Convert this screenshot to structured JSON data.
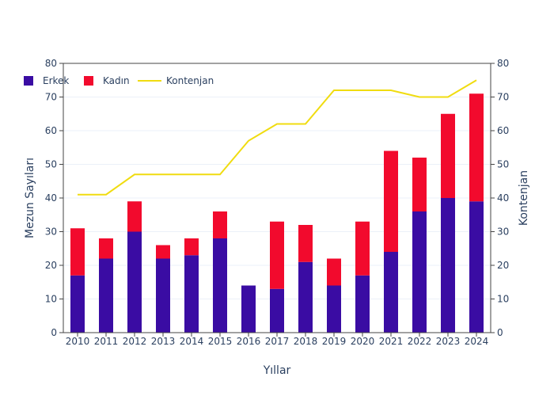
{
  "chart_data": {
    "type": "bar",
    "title": "",
    "xlabel": "Yıllar",
    "ylabel": "Mezun Sayıları",
    "y2label": "Kontenjan",
    "categories": [
      "2010",
      "2011",
      "2012",
      "2013",
      "2014",
      "2015",
      "2016",
      "2017",
      "2018",
      "2019",
      "2020",
      "2021",
      "2022",
      "2023",
      "2024"
    ],
    "ylim": [
      0,
      80
    ],
    "y2lim": [
      0,
      80
    ],
    "yticks": [
      0,
      10,
      20,
      30,
      40,
      50,
      60,
      70,
      80
    ],
    "grid": true,
    "legend_position": "top-left",
    "stacked": true,
    "series": [
      {
        "name": "Erkek",
        "type": "bar",
        "color": "#3a0ca3",
        "values": [
          17,
          22,
          30,
          22,
          23,
          28,
          14,
          13,
          21,
          14,
          17,
          24,
          36,
          40,
          39
        ]
      },
      {
        "name": "Kadın",
        "type": "bar",
        "color": "#f20a2d",
        "values": [
          14,
          6,
          9,
          4,
          5,
          8,
          0,
          20,
          11,
          8,
          16,
          30,
          16,
          25,
          32
        ]
      },
      {
        "name": "Kontenjan",
        "type": "line",
        "color": "#f0dc10",
        "axis": "y2",
        "values": [
          41,
          41,
          47,
          47,
          47,
          47,
          57,
          62,
          62,
          72,
          72,
          72,
          70,
          70,
          75
        ]
      }
    ]
  }
}
